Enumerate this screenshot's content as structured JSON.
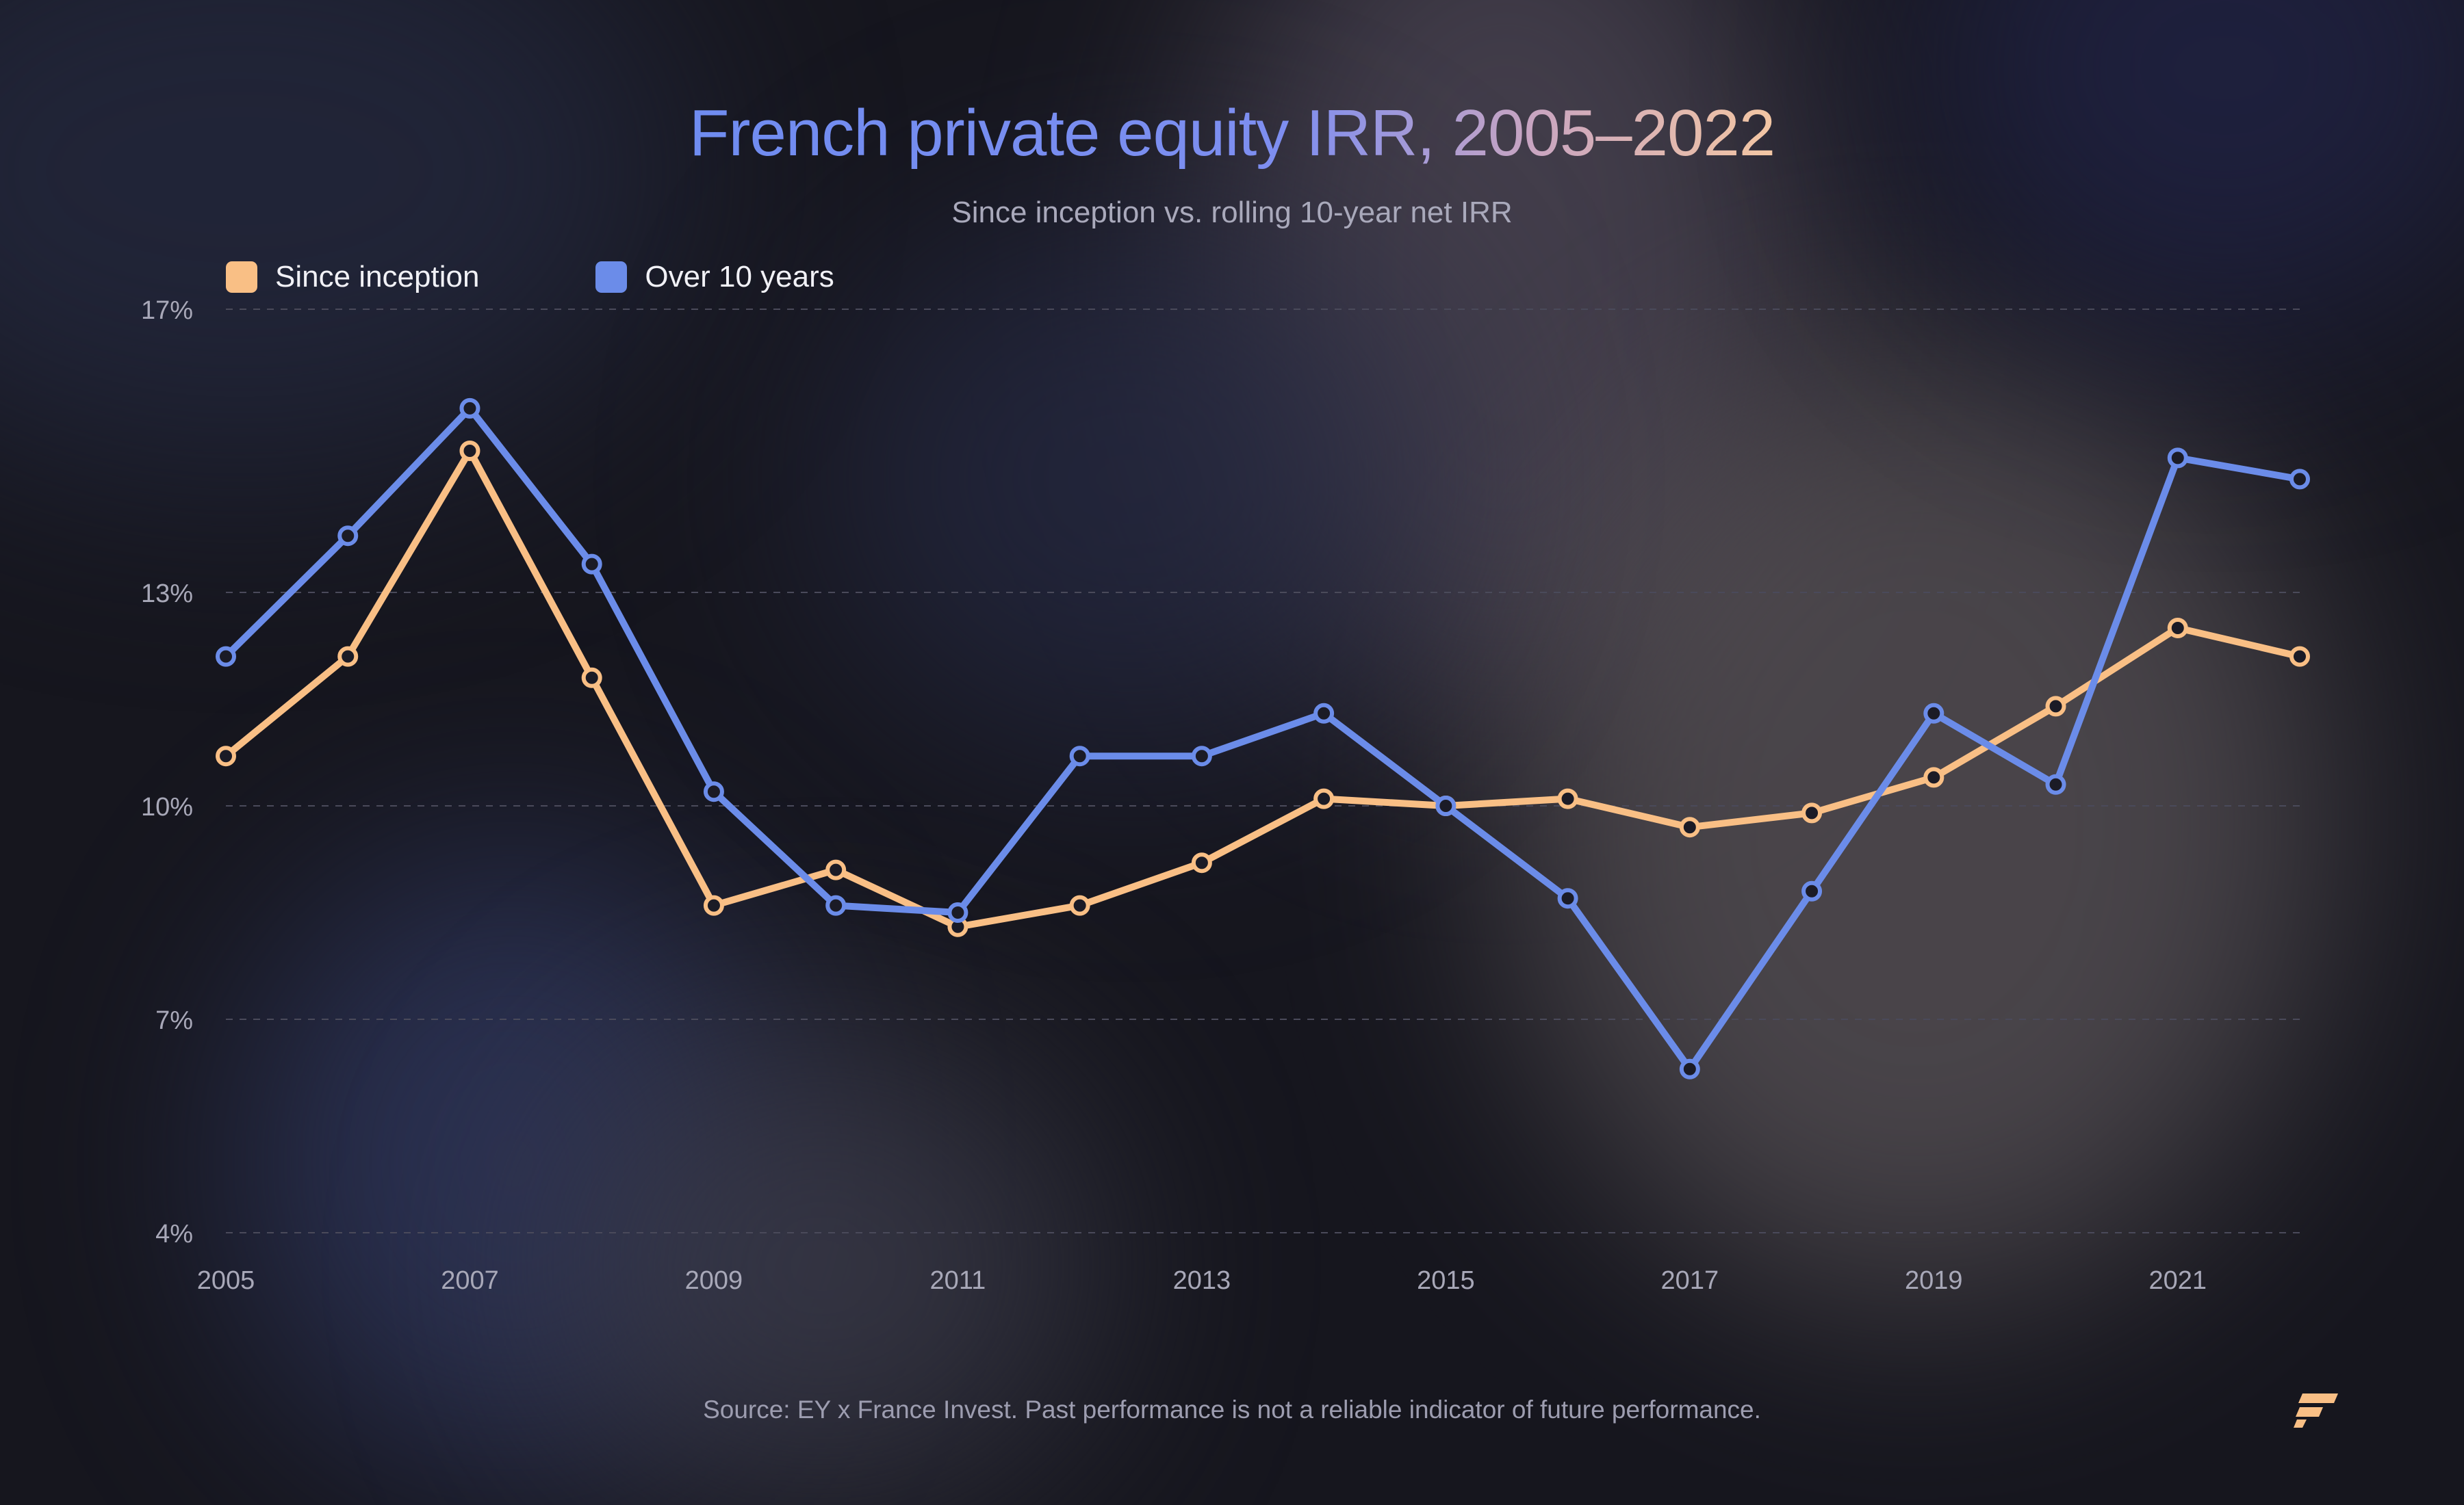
{
  "title": "French private equity IRR, 2005–2022",
  "subtitle": "Since inception vs. rolling 10-year net IRR",
  "source": "Source: EY x France Invest. Past performance is not a reliable indicator of future performance.",
  "logo_icon": "brand-logo-icon",
  "colors": {
    "since_inception": "#f9bf85",
    "over_10_years": "#6b8ce9",
    "grid": "#4a4a5a",
    "tick_text": "#a8a8b8"
  },
  "chart_data": {
    "type": "line",
    "title": "French private equity IRR, 2005–2022",
    "subtitle": "Since inception vs. rolling 10-year net IRR",
    "xlabel": "",
    "ylabel": "",
    "x": [
      2005,
      2006,
      2007,
      2008,
      2009,
      2010,
      2011,
      2012,
      2013,
      2014,
      2015,
      2016,
      2017,
      2018,
      2019,
      2020,
      2021,
      2022
    ],
    "x_tick_labels": [
      "2005",
      "2007",
      "2009",
      "2011",
      "2013",
      "2015",
      "2017",
      "2019",
      "2021"
    ],
    "x_tick_values": [
      2005,
      2007,
      2009,
      2011,
      2013,
      2015,
      2017,
      2019,
      2021
    ],
    "y_ticks": [
      {
        "value": 17,
        "label": "17%"
      },
      {
        "value": 13,
        "label": "13%"
      },
      {
        "value": 10,
        "label": "10%"
      },
      {
        "value": 7,
        "label": "7%"
      },
      {
        "value": 4,
        "label": "4%"
      }
    ],
    "ylim": [
      4,
      17
    ],
    "grid": true,
    "legend_position": "top-left",
    "series": [
      {
        "name": "Since inception",
        "color": "#f9bf85",
        "values": [
          10.7,
          12.1,
          15.0,
          11.8,
          8.6,
          9.1,
          8.3,
          8.6,
          9.2,
          10.1,
          10.0,
          10.1,
          9.7,
          9.9,
          10.4,
          11.4,
          12.5,
          12.1
        ]
      },
      {
        "name": "Over 10 years",
        "color": "#6b8ce9",
        "values": [
          12.1,
          13.8,
          15.6,
          13.4,
          10.2,
          8.6,
          8.5,
          10.7,
          10.7,
          11.3,
          10.0,
          8.7,
          6.3,
          8.8,
          11.3,
          10.3,
          14.9,
          14.6
        ]
      }
    ]
  }
}
